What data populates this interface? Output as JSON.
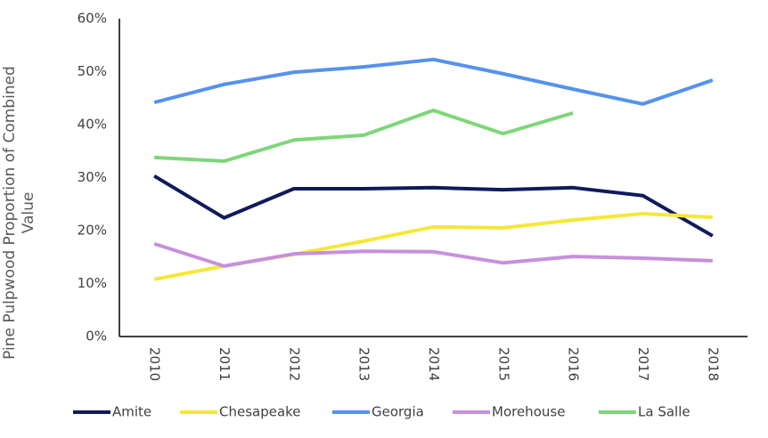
{
  "chart_data": {
    "type": "line",
    "y_label": "Pine Pulpwood Proportion of Combined Value",
    "categories": [
      "2010",
      "2011",
      "2012",
      "2013",
      "2014",
      "2015",
      "2016",
      "2017",
      "2018"
    ],
    "ylim": [
      0,
      60
    ],
    "yticks": [
      {
        "value": 0,
        "label": "0%"
      },
      {
        "value": 10,
        "label": "10%"
      },
      {
        "value": 20,
        "label": "20%"
      },
      {
        "value": 30,
        "label": "30%"
      },
      {
        "value": 40,
        "label": "40%"
      },
      {
        "value": 50,
        "label": "50%"
      },
      {
        "value": 60,
        "label": "60%"
      }
    ],
    "legend": "bottom",
    "series": [
      {
        "name": "Amite",
        "color": "#0f1a5c",
        "values": [
          30.3,
          22.4,
          27.9,
          27.9,
          28.1,
          27.7,
          28.1,
          26.6,
          19.0
        ]
      },
      {
        "name": "Chesapeake",
        "color": "#f5e836",
        "values": [
          10.8,
          13.3,
          15.5,
          18.0,
          20.7,
          20.5,
          22.0,
          23.2,
          22.5
        ]
      },
      {
        "name": "Georgia",
        "color": "#5592ec",
        "values": [
          44.2,
          47.6,
          49.9,
          50.9,
          52.3,
          49.6,
          46.7,
          43.9,
          48.4
        ]
      },
      {
        "name": "Morehouse",
        "color": "#c690dc",
        "values": [
          17.5,
          13.3,
          15.6,
          16.1,
          16.0,
          13.9,
          15.1,
          14.8,
          14.3
        ]
      },
      {
        "name": "La Salle",
        "color": "#7ed67a",
        "values": [
          33.8,
          33.1,
          37.1,
          38.0,
          42.7,
          38.3,
          42.2,
          null,
          null
        ]
      }
    ]
  }
}
